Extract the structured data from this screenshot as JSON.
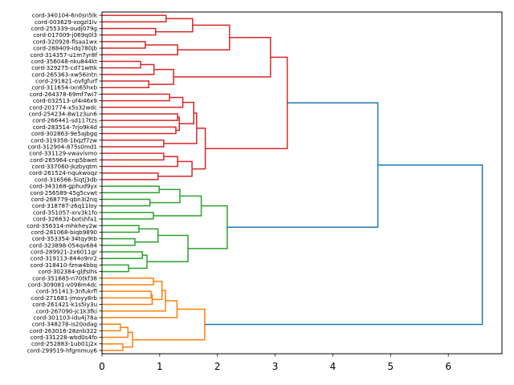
{
  "chart_data": {
    "type": "dendrogram",
    "orientation": "right",
    "title": "",
    "xlabel": "",
    "ylabel": "",
    "xlim": [
      0,
      6.93
    ],
    "x_ticks": [
      0,
      1,
      2,
      3,
      4,
      5,
      6
    ],
    "x_tick_labels": [
      "0",
      "1",
      "2",
      "3",
      "4",
      "5",
      "6"
    ],
    "grid": false,
    "colors": {
      "red": "#d62728",
      "green": "#2ca02c",
      "orange": "#ff7f0e",
      "above_threshold": "#1f77b4"
    },
    "leaves": [
      "cord-340104-6n0sn5lk",
      "cord-003629-xogzl1lv",
      "cord-255339-oudj079g",
      "cord-017009-j069q0l3",
      "cord-320928-flsaa1wx",
      "cord-288409-idq780jb",
      "cord-314357-u1m7yr8f",
      "cord-356048-nku844kt",
      "cord-329275-cd71wttk",
      "cord-265363-xw56intn",
      "cord-291821-ovfgfurf",
      "cord-311654-ixn65hxb",
      "cord-264378-69mf7wi7",
      "cord-032513-uf4i46x9",
      "cord-201774-x5s32wdc",
      "cord-254234-8w1z3un6",
      "cord-266441-sd117tzs",
      "cord-283514-7rjo9k4d",
      "cord-302863-9e5ajbgq",
      "cord-319358-1bqzf7zw",
      "cord-312904-875s0md1",
      "cord-331129-vwavivmo",
      "cord-265964-cnp5bwet",
      "cord-337060-jkzbyqtm",
      "cord-261524-nqukwoqz",
      "cord-316566-5iqtj3db",
      "cord-343168-gphud9yx",
      "cord-256589-45g5cvwt",
      "cord-268779-qbn3i2nq",
      "cord-318787-z6q11loy",
      "cord-351057-xrv3k1fo",
      "cord-326632-botshfa1",
      "cord-356314-mhkhey2w",
      "cord-281068-biqb9890",
      "cord-353354-34tqy9tb",
      "cord-323898-054qv684",
      "cord-289921-2x6011gr",
      "cord-319113-844o9nr2",
      "cord-318410-fznw4bbq",
      "cord-302384-gljfslhs",
      "cord-351685-n70tkf38",
      "cord-309081-v098m4dc",
      "cord-351413-3nfukrfl",
      "cord-271681-jmoyy8rb",
      "cord-261421-k1s5iy3u",
      "cord-267090-jc1k3fki",
      "cord-301103-idu4j78a",
      "cord-348278-is20odag",
      "cord-263016-28znb322",
      "cord-331228-wbd0s4fo",
      "cord-252883-1ub01j2x",
      "cord-299519-hfgmmuy6"
    ],
    "merges": [
      {
        "id": "m0",
        "a": 0,
        "b": 1,
        "height": 1.11,
        "color": "red"
      },
      {
        "id": "m1",
        "a": 2,
        "b": 3,
        "height": 0.93,
        "color": "red"
      },
      {
        "id": "m2",
        "a": "m0",
        "b": "m1",
        "height": 1.57,
        "color": "red"
      },
      {
        "id": "m3",
        "a": 4,
        "b": 5,
        "height": 0.75,
        "color": "red"
      },
      {
        "id": "m4",
        "a": "m3",
        "b": 6,
        "height": 1.31,
        "color": "red"
      },
      {
        "id": "m5",
        "a": "m2",
        "b": "m4",
        "height": 2.21,
        "color": "red"
      },
      {
        "id": "m6",
        "a": 7,
        "b": 8,
        "height": 0.67,
        "color": "red"
      },
      {
        "id": "m7",
        "a": "m6",
        "b": 9,
        "height": 0.9,
        "color": "red"
      },
      {
        "id": "m8",
        "a": 10,
        "b": 11,
        "height": 0.81,
        "color": "red"
      },
      {
        "id": "m9",
        "a": "m7",
        "b": "m8",
        "height": 1.24,
        "color": "red"
      },
      {
        "id": "m10",
        "a": "m5",
        "b": "m9",
        "height": 2.92,
        "color": "red"
      },
      {
        "id": "m11",
        "a": 12,
        "b": 13,
        "height": 1.17,
        "color": "red"
      },
      {
        "id": "m12",
        "a": "m11",
        "b": 14,
        "height": 1.4,
        "color": "red"
      },
      {
        "id": "m13",
        "a": 15,
        "b": 16,
        "height": 1.31,
        "color": "red"
      },
      {
        "id": "m14",
        "a": 17,
        "b": 18,
        "height": 1.28,
        "color": "red"
      },
      {
        "id": "m15",
        "a": "m13",
        "b": "m14",
        "height": 1.34,
        "color": "red"
      },
      {
        "id": "m16",
        "a": "m12",
        "b": "m15",
        "height": 1.59,
        "color": "red"
      },
      {
        "id": "m17",
        "a": 19,
        "b": 20,
        "height": 1.07,
        "color": "red"
      },
      {
        "id": "m18",
        "a": "m16",
        "b": "m17",
        "height": 1.64,
        "color": "red"
      },
      {
        "id": "m19",
        "a": 21,
        "b": 22,
        "height": 1.07,
        "color": "red"
      },
      {
        "id": "m20",
        "a": "m19",
        "b": 23,
        "height": 1.31,
        "color": "red"
      },
      {
        "id": "m21",
        "a": 24,
        "b": 25,
        "height": 0.97,
        "color": "red"
      },
      {
        "id": "m22",
        "a": "m20",
        "b": "m21",
        "height": 1.56,
        "color": "red"
      },
      {
        "id": "m23",
        "a": "m18",
        "b": "m22",
        "height": 1.79,
        "color": "red"
      },
      {
        "id": "m24",
        "a": "m10",
        "b": "m23",
        "height": 3.21,
        "color": "red"
      },
      {
        "id": "g0",
        "a": 26,
        "b": 27,
        "height": 0.99,
        "color": "green"
      },
      {
        "id": "g1",
        "a": 28,
        "b": 29,
        "height": 0.83,
        "color": "green"
      },
      {
        "id": "g2",
        "a": "g0",
        "b": "g1",
        "height": 1.35,
        "color": "green"
      },
      {
        "id": "g3",
        "a": 30,
        "b": 31,
        "height": 0.89,
        "color": "green"
      },
      {
        "id": "g4",
        "a": "g2",
        "b": "g3",
        "height": 1.72,
        "color": "green"
      },
      {
        "id": "g5",
        "a": 32,
        "b": 33,
        "height": 0.64,
        "color": "green"
      },
      {
        "id": "g6",
        "a": 34,
        "b": 35,
        "height": 0.57,
        "color": "green"
      },
      {
        "id": "g7",
        "a": "g5",
        "b": "g6",
        "height": 0.97,
        "color": "green"
      },
      {
        "id": "g8",
        "a": 36,
        "b": 37,
        "height": 0.7,
        "color": "green"
      },
      {
        "id": "g9",
        "a": 38,
        "b": 39,
        "height": 0.46,
        "color": "green"
      },
      {
        "id": "g10",
        "a": "g8",
        "b": "g9",
        "height": 0.78,
        "color": "green"
      },
      {
        "id": "g11",
        "a": "g7",
        "b": "g10",
        "height": 1.49,
        "color": "green"
      },
      {
        "id": "g12",
        "a": "g4",
        "b": "g11",
        "height": 2.17,
        "color": "green"
      },
      {
        "id": "o0",
        "a": 40,
        "b": 41,
        "height": 0.89,
        "color": "orange"
      },
      {
        "id": "o1",
        "a": 42,
        "b": 43,
        "height": 0.85,
        "color": "orange"
      },
      {
        "id": "o2",
        "a": "o1",
        "b": 44,
        "height": 0.87,
        "color": "orange"
      },
      {
        "id": "o3",
        "a": "o0",
        "b": "o2",
        "height": 1.04,
        "color": "orange"
      },
      {
        "id": "o4",
        "a": "o3",
        "b": 45,
        "height": 1.1,
        "color": "orange"
      },
      {
        "id": "o5",
        "a": "o4",
        "b": 46,
        "height": 1.3,
        "color": "orange"
      },
      {
        "id": "o6",
        "a": 47,
        "b": 48,
        "height": 0.32,
        "color": "orange"
      },
      {
        "id": "o7",
        "a": "o6",
        "b": 49,
        "height": 0.45,
        "color": "orange"
      },
      {
        "id": "o8",
        "a": 50,
        "b": 51,
        "height": 0.36,
        "color": "orange"
      },
      {
        "id": "o9",
        "a": "o7",
        "b": "o8",
        "height": 0.53,
        "color": "orange"
      },
      {
        "id": "o10",
        "a": "o5",
        "b": "o9",
        "height": 1.78,
        "color": "orange"
      },
      {
        "id": "b0",
        "a": "m24",
        "b": "g12",
        "height": 4.78,
        "color": "above_threshold"
      },
      {
        "id": "b1",
        "a": "b0",
        "b": "o10",
        "height": 6.59,
        "color": "above_threshold"
      }
    ]
  }
}
